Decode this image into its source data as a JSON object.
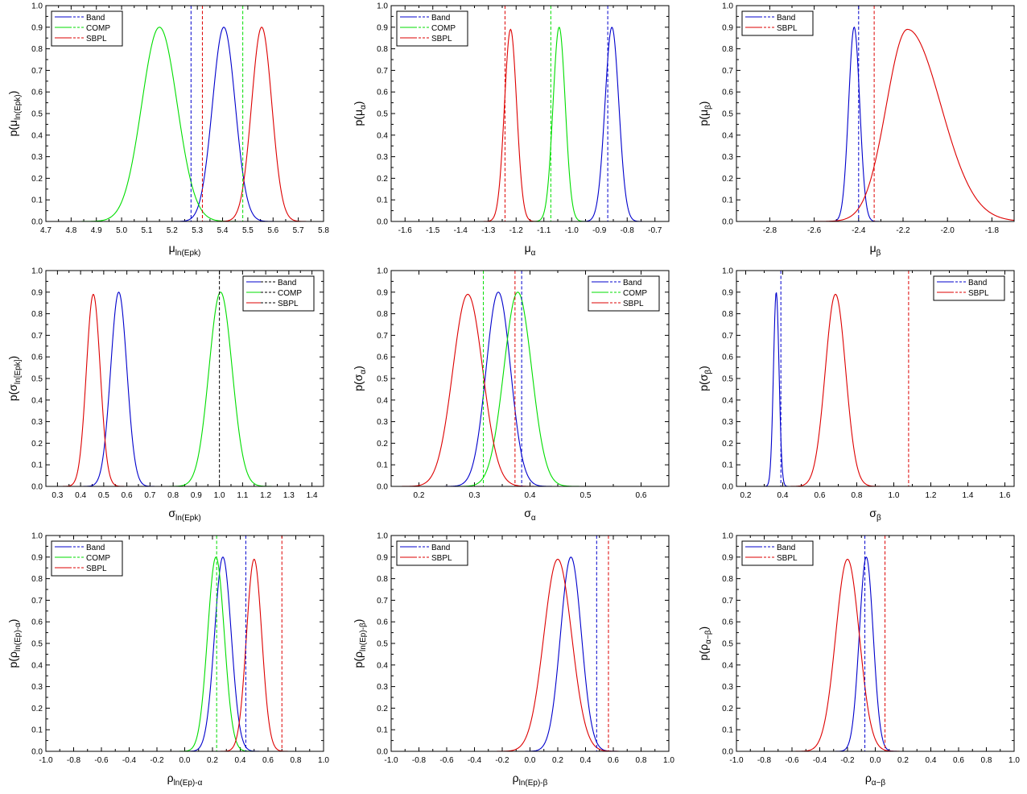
{
  "colors": {
    "Band": "#0000cc",
    "COMP": "#00dd00",
    "SBPL": "#dd0000"
  },
  "chart_data": [
    {
      "type": "line",
      "ylim": [
        0,
        1.0
      ],
      "yticks": [
        "0.0",
        "0.1",
        "0.2",
        "0.3",
        "0.4",
        "0.5",
        "0.6",
        "0.7",
        "0.8",
        "0.9",
        "1.0"
      ],
      "xlim": [
        4.7,
        5.8
      ],
      "xticks": [
        "4.7",
        "4.8",
        "4.9",
        "5.0",
        "5.1",
        "5.2",
        "5.3",
        "5.4",
        "5.5",
        "5.6",
        "5.7",
        "5.8"
      ],
      "xlabel": {
        "base": "μ",
        "sub": "ln(Epk)"
      },
      "ylabel": {
        "pre": "p(",
        "base": "μ",
        "sub": "ln(Epk)",
        "post": ")"
      },
      "legend": {
        "position": "top-left",
        "entries": [
          "Band",
          "COMP",
          "SBPL"
        ]
      },
      "series": [
        {
          "name": "Band",
          "peak": 0.9,
          "mean": 5.405,
          "sigma": 0.045
        },
        {
          "name": "COMP",
          "peak": 0.9,
          "mean": 5.15,
          "sigma": 0.07
        },
        {
          "name": "SBPL",
          "peak": 0.9,
          "mean": 5.555,
          "sigma": 0.04
        }
      ],
      "vlines": [
        {
          "series": "Band",
          "x": 5.275
        },
        {
          "series": "SBPL",
          "x": 5.32
        },
        {
          "series": "COMP",
          "x": 5.48
        }
      ]
    },
    {
      "type": "line",
      "ylim": [
        0,
        1.0
      ],
      "yticks": [
        "0.0",
        "0.1",
        "0.2",
        "0.3",
        "0.4",
        "0.5",
        "0.6",
        "0.7",
        "0.8",
        "0.9",
        "1.0"
      ],
      "xlim": [
        -1.65,
        -0.65
      ],
      "xticks": [
        "-1.6",
        "-1.5",
        "-1.4",
        "-1.3",
        "-1.2",
        "-1.1",
        "-1.0",
        "-0.9",
        "-0.8",
        "-0.7"
      ],
      "xlabel": {
        "base": "μ",
        "sub": "α"
      },
      "ylabel": {
        "pre": "p(",
        "base": "μ",
        "sub": "α",
        "post": ")"
      },
      "legend": {
        "position": "top-left",
        "entries": [
          "Band",
          "COMP",
          "SBPL"
        ]
      },
      "series": [
        {
          "name": "Band",
          "peak": 0.9,
          "mean": -0.855,
          "sigma": 0.025
        },
        {
          "name": "COMP",
          "peak": 0.9,
          "mean": -1.045,
          "sigma": 0.022
        },
        {
          "name": "SBPL",
          "peak": 0.89,
          "mean": -1.22,
          "sigma": 0.022
        }
      ],
      "vlines": [
        {
          "series": "SBPL",
          "x": -1.24
        },
        {
          "series": "COMP",
          "x": -1.075
        },
        {
          "series": "Band",
          "x": -0.87
        }
      ]
    },
    {
      "type": "line",
      "ylim": [
        0,
        1.0
      ],
      "yticks": [
        "0.0",
        "0.1",
        "0.2",
        "0.3",
        "0.4",
        "0.5",
        "0.6",
        "0.7",
        "0.8",
        "0.9",
        "1.0"
      ],
      "xlim": [
        -2.95,
        -1.7
      ],
      "xticks": [
        "-2.8",
        "-2.6",
        "-2.4",
        "-2.2",
        "-2.0",
        "-1.8"
      ],
      "xlabel": {
        "base": "μ",
        "sub": "β"
      },
      "ylabel": {
        "pre": "p(",
        "base": "μ",
        "sub": "β",
        "post": ")"
      },
      "legend": {
        "position": "top-left",
        "entries": [
          "Band",
          "SBPL"
        ]
      },
      "series": [
        {
          "name": "Band",
          "peak": 0.9,
          "mean": -2.42,
          "sigma": 0.025
        },
        {
          "name": "SBPL",
          "peak": 0.89,
          "mean": -2.18,
          "sigma": 0.095,
          "sigmaRight": 0.15
        }
      ],
      "vlines": [
        {
          "series": "Band",
          "x": -2.4
        },
        {
          "series": "SBPL",
          "x": -2.33
        }
      ]
    },
    {
      "type": "line",
      "ylim": [
        0,
        1.0
      ],
      "yticks": [
        "0.0",
        "0.1",
        "0.2",
        "0.3",
        "0.4",
        "0.5",
        "0.6",
        "0.7",
        "0.8",
        "0.9",
        "1.0"
      ],
      "xlim": [
        0.25,
        1.45
      ],
      "xticks": [
        "0.3",
        "0.4",
        "0.5",
        "0.6",
        "0.7",
        "0.8",
        "0.9",
        "1.0",
        "1.1",
        "1.2",
        "1.3",
        "1.4"
      ],
      "xlabel": {
        "base": "σ",
        "sub": "ln(Epk)"
      },
      "ylabel": {
        "pre": "p(",
        "base": "σ",
        "sub": "ln[Epk]",
        "post": ")"
      },
      "legend": {
        "position": "top-right",
        "entries": [
          "Band",
          "COMP",
          "SBPL"
        ],
        "line_color": "#000000"
      },
      "series": [
        {
          "name": "Band",
          "peak": 0.9,
          "mean": 0.565,
          "sigma": 0.035
        },
        {
          "name": "COMP",
          "peak": 0.9,
          "mean": 1.005,
          "sigma": 0.05
        },
        {
          "name": "SBPL",
          "peak": 0.89,
          "mean": 0.455,
          "sigma": 0.03
        }
      ],
      "vlines": [
        {
          "series": "Band",
          "x": 1.0,
          "color": "#000000"
        }
      ]
    },
    {
      "type": "line",
      "ylim": [
        0,
        1.0
      ],
      "yticks": [
        "0.0",
        "0.1",
        "0.2",
        "0.3",
        "0.4",
        "0.5",
        "0.6",
        "0.7",
        "0.8",
        "0.9",
        "1.0"
      ],
      "xlim": [
        0.15,
        0.65
      ],
      "xticks": [
        "0.2",
        "0.3",
        "0.4",
        "0.5",
        "0.6"
      ],
      "xlabel": {
        "base": "σ",
        "sub": "α"
      },
      "ylabel": {
        "pre": "p(",
        "base": "σ",
        "sub": "α",
        "post": ")"
      },
      "legend": {
        "position": "top-right",
        "entries": [
          "Band",
          "COMP",
          "SBPL"
        ]
      },
      "series": [
        {
          "name": "Band",
          "peak": 0.9,
          "mean": 0.343,
          "sigma": 0.022
        },
        {
          "name": "COMP",
          "peak": 0.9,
          "mean": 0.378,
          "sigma": 0.025
        },
        {
          "name": "SBPL",
          "peak": 0.89,
          "mean": 0.288,
          "sigma": 0.027
        }
      ],
      "vlines": [
        {
          "series": "COMP",
          "x": 0.316
        },
        {
          "series": "SBPL",
          "x": 0.373
        },
        {
          "series": "Band",
          "x": 0.385
        }
      ]
    },
    {
      "type": "line",
      "ylim": [
        0,
        1.0
      ],
      "yticks": [
        "0.0",
        "0.1",
        "0.2",
        "0.3",
        "0.4",
        "0.5",
        "0.6",
        "0.7",
        "0.8",
        "0.9",
        "1.0"
      ],
      "xlim": [
        0.15,
        1.65
      ],
      "xticks": [
        "0.2",
        "0.4",
        "0.6",
        "0.8",
        "1.0",
        "1.2",
        "1.4",
        "1.6"
      ],
      "xlabel": {
        "base": "σ",
        "sub": "β"
      },
      "ylabel": {
        "pre": "p(",
        "base": "σ",
        "sub": "β",
        "post": ")"
      },
      "legend": {
        "position": "top-right",
        "entries": [
          "Band",
          "SBPL"
        ]
      },
      "series": [
        {
          "name": "Band",
          "peak": 0.9,
          "mean": 0.365,
          "sigma": 0.015
        },
        {
          "name": "SBPL",
          "peak": 0.89,
          "mean": 0.685,
          "sigma": 0.055
        }
      ],
      "vlines": [
        {
          "series": "Band",
          "x": 0.39
        },
        {
          "series": "SBPL",
          "x": 1.08
        }
      ]
    },
    {
      "type": "line",
      "ylim": [
        0,
        1.0
      ],
      "yticks": [
        "0.0",
        "0.1",
        "0.2",
        "0.3",
        "0.4",
        "0.5",
        "0.6",
        "0.7",
        "0.8",
        "0.9",
        "1.0"
      ],
      "xlim": [
        -1.0,
        1.0
      ],
      "xticks": [
        "-1.0",
        "-0.8",
        "-0.6",
        "-0.4",
        "-0.2",
        "0.0",
        "0.2",
        "0.4",
        "0.6",
        "0.8",
        "1.0"
      ],
      "xlabel": {
        "base": "ρ",
        "sub": "ln(Ep)-α"
      },
      "ylabel": {
        "pre": "p(",
        "base": "ρ",
        "sub": "ln(Ep)-α",
        "post": ")"
      },
      "legend": {
        "position": "top-left",
        "entries": [
          "Band",
          "COMP",
          "SBPL"
        ]
      },
      "series": [
        {
          "name": "Band",
          "peak": 0.9,
          "mean": 0.275,
          "sigma": 0.06
        },
        {
          "name": "COMP",
          "peak": 0.9,
          "mean": 0.225,
          "sigma": 0.06
        },
        {
          "name": "SBPL",
          "peak": 0.89,
          "mean": 0.5,
          "sigma": 0.055
        }
      ],
      "vlines": [
        {
          "series": "COMP",
          "x": 0.23
        },
        {
          "series": "Band",
          "x": 0.44
        },
        {
          "series": "SBPL",
          "x": 0.7
        }
      ]
    },
    {
      "type": "line",
      "ylim": [
        0,
        1.0
      ],
      "yticks": [
        "0.0",
        "0.1",
        "0.2",
        "0.3",
        "0.4",
        "0.5",
        "0.6",
        "0.7",
        "0.8",
        "0.9",
        "1.0"
      ],
      "xlim": [
        -1.0,
        1.0
      ],
      "xticks": [
        "-1.0",
        "-0.8",
        "-0.6",
        "-0.4",
        "-0.2",
        "0.0",
        "0.2",
        "0.4",
        "0.6",
        "0.8",
        "1.0"
      ],
      "xlabel": {
        "base": "ρ",
        "sub": "ln(Ep)-β"
      },
      "ylabel": {
        "pre": "p(",
        "base": "ρ",
        "sub": "ln(Ep)-β",
        "post": ")"
      },
      "legend": {
        "position": "top-left",
        "entries": [
          "Band",
          "SBPL"
        ]
      },
      "series": [
        {
          "name": "Band",
          "peak": 0.9,
          "mean": 0.295,
          "sigma": 0.075
        },
        {
          "name": "SBPL",
          "peak": 0.89,
          "mean": 0.2,
          "sigma": 0.1
        }
      ],
      "vlines": [
        {
          "series": "Band",
          "x": 0.48
        },
        {
          "series": "SBPL",
          "x": 0.565
        }
      ]
    },
    {
      "type": "line",
      "ylim": [
        0,
        1.0
      ],
      "yticks": [
        "0.0",
        "0.1",
        "0.2",
        "0.3",
        "0.4",
        "0.5",
        "0.6",
        "0.7",
        "0.8",
        "0.9",
        "1.0"
      ],
      "xlim": [
        -1.0,
        1.0
      ],
      "xticks": [
        "-1.0",
        "-0.8",
        "-0.6",
        "-0.4",
        "-0.2",
        "0.0",
        "0.2",
        "0.4",
        "0.6",
        "0.8",
        "1.0"
      ],
      "xlabel": {
        "base": "ρ",
        "sub": "α−β"
      },
      "ylabel": {
        "pre": "p(",
        "base": "ρ",
        "sub": "α−β",
        "post": ")"
      },
      "legend": {
        "position": "top-left",
        "entries": [
          "Band",
          "SBPL"
        ]
      },
      "series": [
        {
          "name": "Band",
          "peak": 0.9,
          "mean": -0.065,
          "sigma": 0.05
        },
        {
          "name": "SBPL",
          "peak": 0.89,
          "mean": -0.2,
          "sigma": 0.085
        }
      ],
      "vlines": [
        {
          "series": "Band",
          "x": -0.075
        },
        {
          "series": "SBPL",
          "x": 0.07
        }
      ]
    }
  ]
}
